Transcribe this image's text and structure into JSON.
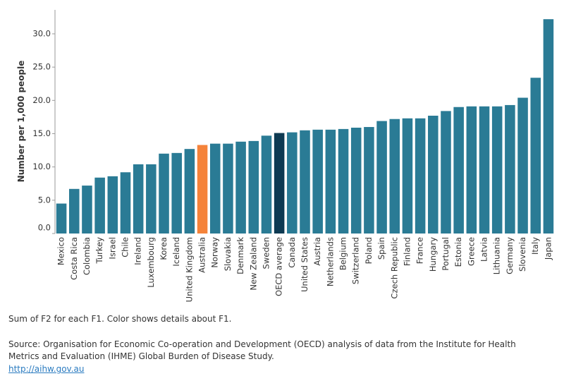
{
  "chart_data": {
    "type": "bar",
    "y_label": "Number per 1,000 people",
    "categories": [
      "Mexico",
      "Costa Rica",
      "Colombia",
      "Turkey",
      "Israel",
      "Chile",
      "Ireland",
      "Luxembourg",
      "Korea",
      "Iceland",
      "United Kingdom",
      "Australia",
      "Norway",
      "Slovakia",
      "Denmark",
      "New Zealand",
      "Sweden",
      "OECD average",
      "Canada",
      "United States",
      "Austria",
      "Netherlands",
      "Belgium",
      "Switzerland",
      "Poland",
      "Spain",
      "Czech Republic",
      "Finland",
      "France",
      "Hungary",
      "Portugal",
      "Estonia",
      "Greece",
      "Latvia",
      "Lithuania",
      "Germany",
      "Slovenia",
      "Italy",
      "Japan"
    ],
    "values": [
      4.5,
      6.7,
      7.2,
      8.4,
      8.6,
      9.2,
      10.4,
      10.4,
      12.0,
      12.1,
      12.7,
      13.3,
      13.5,
      13.5,
      13.8,
      13.9,
      14.7,
      15.1,
      15.2,
      15.5,
      15.6,
      15.6,
      15.7,
      15.9,
      16.0,
      16.9,
      17.2,
      17.3,
      17.3,
      17.7,
      18.4,
      19.0,
      19.1,
      19.1,
      19.1,
      19.3,
      20.4,
      23.4,
      32.2
    ],
    "color": "#2a7b95",
    "highlight_colors": {
      "Australia": "#f5833a",
      "OECD average": "#0e3a52"
    },
    "ylim": [
      0,
      33.6
    ],
    "yticks": [
      {
        "value": 0,
        "label": "0.0"
      },
      {
        "value": 5,
        "label": "5.0"
      },
      {
        "value": 10,
        "label": "10.0"
      },
      {
        "value": 15,
        "label": "15.0"
      },
      {
        "value": 20,
        "label": "20.0"
      },
      {
        "value": 25,
        "label": "25.0"
      },
      {
        "value": 30,
        "label": "30.0"
      }
    ],
    "grid": false
  },
  "caption": "Sum of F2 for each F1.  Color shows details about F1.",
  "source": "Source: Organisation for Economic Co-operation and Development (OECD) analysis of data from the Institute for Health Metrics and Evaluation (IHME) Global Burden of Disease Study.",
  "link": "http://aihw.gov.au"
}
